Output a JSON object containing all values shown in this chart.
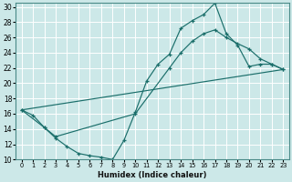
{
  "xlabel": "Humidex (Indice chaleur)",
  "bg_color": "#cce8e8",
  "grid_color": "#b0d8d8",
  "line_color": "#1a6e6a",
  "xlim": [
    -0.5,
    23.5
  ],
  "ylim": [
    10,
    30.5
  ],
  "xticks": [
    0,
    1,
    2,
    3,
    4,
    5,
    6,
    7,
    8,
    9,
    10,
    11,
    12,
    13,
    14,
    15,
    16,
    17,
    18,
    19,
    20,
    21,
    22,
    23
  ],
  "yticks": [
    10,
    12,
    14,
    16,
    18,
    20,
    22,
    24,
    26,
    28,
    30
  ],
  "line1_x": [
    0,
    1,
    2,
    3,
    4,
    5,
    6,
    7,
    8,
    9,
    10,
    11,
    12,
    13,
    14,
    15,
    16,
    17,
    18,
    19,
    20,
    21,
    22,
    23
  ],
  "line1_y": [
    16.5,
    15.8,
    14.2,
    12.8,
    11.7,
    10.8,
    10.5,
    10.3,
    10.0,
    12.5,
    16.2,
    20.3,
    22.5,
    23.8,
    27.2,
    28.2,
    29.0,
    30.5,
    26.5,
    25.0,
    22.2,
    22.5,
    22.5,
    21.8
  ],
  "line2_x": [
    0,
    2,
    3,
    10,
    13,
    14,
    15,
    16,
    17,
    18,
    19,
    20,
    21,
    22,
    23
  ],
  "line2_y": [
    16.5,
    14.2,
    13.0,
    16.0,
    22.0,
    24.0,
    25.5,
    26.5,
    27.0,
    26.0,
    25.2,
    24.5,
    23.2,
    22.5,
    21.8
  ],
  "line3_x": [
    0,
    23
  ],
  "line3_y": [
    16.5,
    21.8
  ]
}
